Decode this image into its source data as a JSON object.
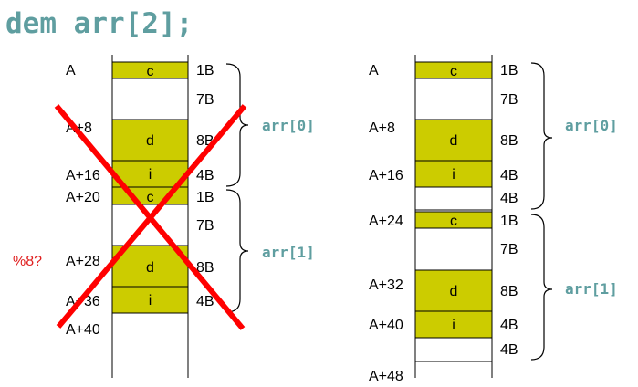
{
  "title": "dem arr[2];",
  "left": {
    "note": "%8?",
    "addresses": [
      "A",
      "A+8",
      "A+16",
      "A+20",
      "A+28",
      "A+36",
      "A+40"
    ],
    "cells": [
      {
        "label": "c",
        "size": "1B"
      },
      {
        "label": "",
        "size": "7B"
      },
      {
        "label": "d",
        "size": "8B"
      },
      {
        "label": "i",
        "size": "4B"
      },
      {
        "label": "c",
        "size": "1B"
      },
      {
        "label": "",
        "size": "7B"
      },
      {
        "label": "d",
        "size": "8B"
      },
      {
        "label": "i",
        "size": "4B"
      }
    ],
    "braces": [
      "arr[0]",
      "arr[1]"
    ]
  },
  "right": {
    "addresses": [
      "A",
      "A+8",
      "A+16",
      "A+24",
      "A+32",
      "A+40",
      "A+48"
    ],
    "cells": [
      {
        "label": "c",
        "size": "1B"
      },
      {
        "label": "",
        "size": "7B"
      },
      {
        "label": "d",
        "size": "8B"
      },
      {
        "label": "i",
        "size": "4B"
      },
      {
        "label": "",
        "size": "4B"
      },
      {
        "label": "c",
        "size": "1B"
      },
      {
        "label": "",
        "size": "7B"
      },
      {
        "label": "d",
        "size": "8B"
      },
      {
        "label": "i",
        "size": "4B"
      },
      {
        "label": "",
        "size": "4B"
      }
    ],
    "braces": [
      "arr[0]",
      "arr[1]"
    ]
  },
  "colors": {
    "cell": "#cccc00",
    "title": "#5f9ea0",
    "cross": "#ff0000",
    "note": "#e02020"
  }
}
